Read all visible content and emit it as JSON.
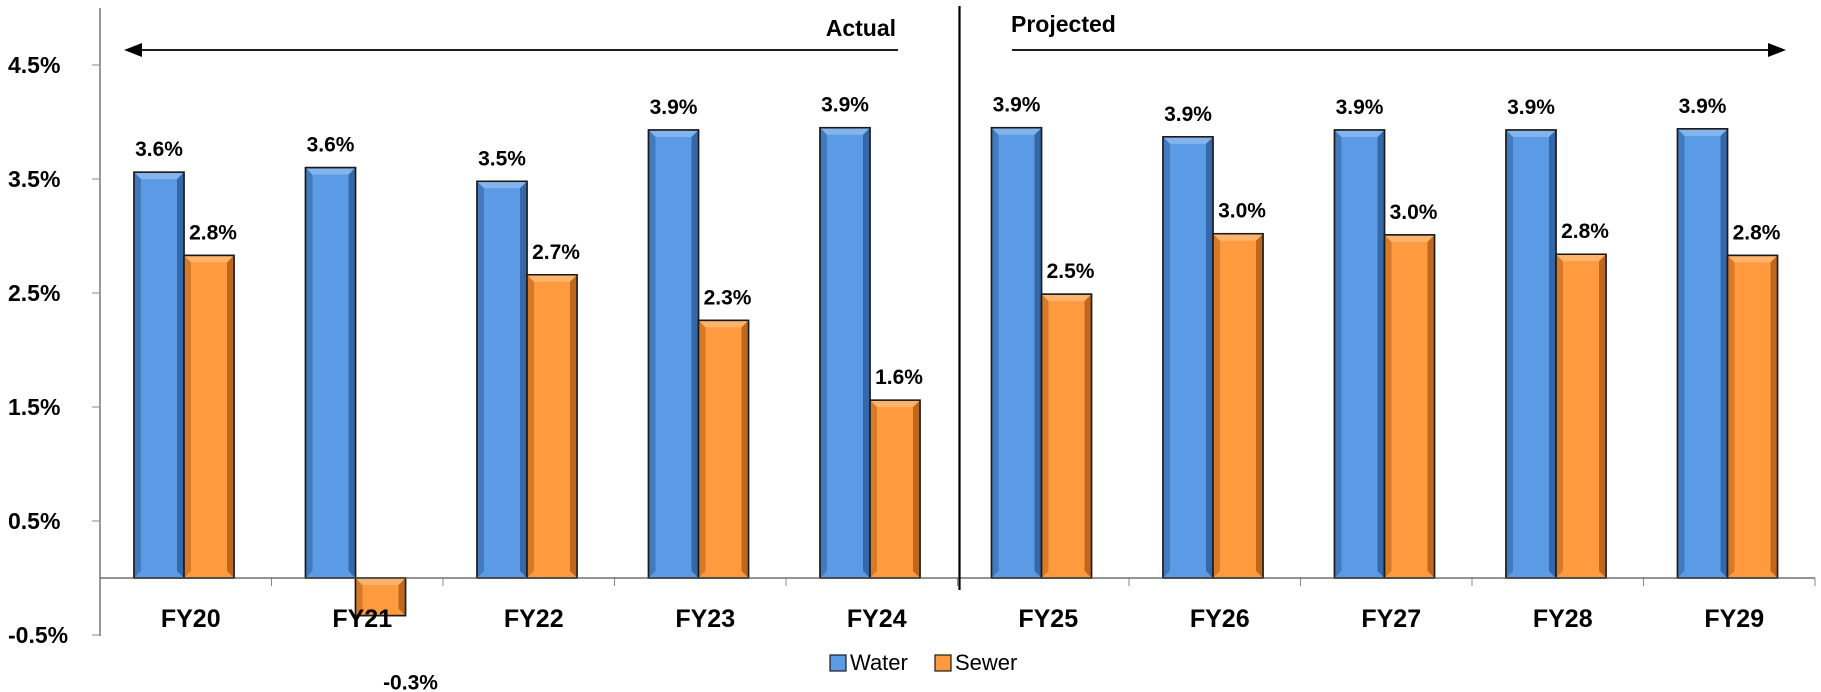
{
  "chart_data": {
    "type": "bar",
    "categories": [
      "FY20",
      "FY21",
      "FY22",
      "FY23",
      "FY24",
      "FY25",
      "FY26",
      "FY27",
      "FY28",
      "FY29"
    ],
    "series": [
      {
        "name": "Water",
        "values": [
          3.6,
          3.6,
          3.5,
          3.9,
          3.9,
          3.9,
          3.9,
          3.9,
          3.9,
          3.9
        ],
        "bar_heights": [
          3.56,
          3.6,
          3.48,
          3.93,
          3.95,
          3.95,
          3.87,
          3.93,
          3.93,
          3.94
        ],
        "labels": [
          "3.6%",
          "3.6%",
          "3.5%",
          "3.9%",
          "3.9%",
          "3.9%",
          "3.9%",
          "3.9%",
          "3.9%",
          "3.9%"
        ],
        "color": "#5B9BE6"
      },
      {
        "name": "Sewer",
        "values": [
          2.8,
          -0.3,
          2.7,
          2.3,
          1.6,
          2.5,
          3.0,
          3.0,
          2.8,
          2.8
        ],
        "bar_heights": [
          2.83,
          -0.33,
          2.66,
          2.26,
          1.56,
          2.49,
          3.02,
          3.01,
          2.84,
          2.83
        ],
        "labels": [
          "2.8%",
          "-0.3%",
          "2.7%",
          "2.3%",
          "1.6%",
          "2.5%",
          "3.0%",
          "3.0%",
          "2.8%",
          "2.8%"
        ],
        "color": "#FF9B3E"
      }
    ],
    "y_ticks": [
      -0.5,
      0.5,
      1.5,
      2.5,
      3.5,
      4.5
    ],
    "y_tick_labels": [
      "-0.5%",
      "0.5%",
      "1.5%",
      "2.5%",
      "3.5%",
      "4.5%"
    ],
    "ylim": [
      -0.5,
      5.0
    ],
    "periods": [
      {
        "label": "Actual",
        "from": "FY20",
        "to": "FY24",
        "arrow": "left"
      },
      {
        "label": "Projected",
        "from": "FY25",
        "to": "FY29",
        "arrow": "right"
      }
    ],
    "legend": {
      "position": "bottom",
      "entries": [
        "Water",
        "Sewer"
      ]
    },
    "title": "",
    "xlabel": "",
    "ylabel": "",
    "grid": false
  },
  "colors": {
    "water_front": "#5B9BE6",
    "water_dark": "#2E5F9C",
    "sewer_front": "#FF9B3E",
    "sewer_dark": "#B45F17",
    "axis": "#000000",
    "tick": "#888888"
  }
}
